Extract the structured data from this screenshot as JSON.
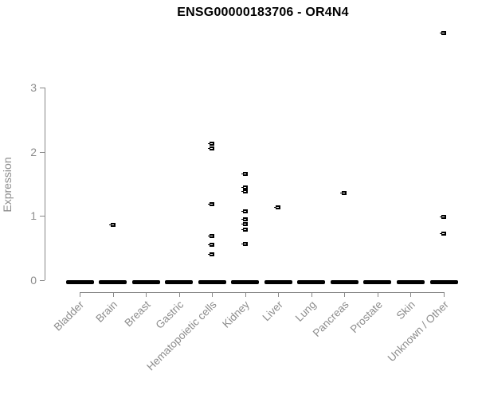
{
  "chart_data": {
    "type": "scatter",
    "title": "ENSG00000183706 - OR4N4",
    "ylabel": "Expression",
    "xlabel": "",
    "yticks": [
      0,
      1,
      2,
      3
    ],
    "ylim": [
      0,
      3
    ],
    "grid": false,
    "legend": "none",
    "marker": "small-open-square",
    "point_color": "#000000",
    "axis_color": "#888888",
    "label_color": "#8c8c8c",
    "categories": [
      "Bladder",
      "Brain",
      "Breast",
      "Gastric",
      "Hematopoietic cells",
      "Kidney",
      "Liver",
      "Lung",
      "Pancreas",
      "Prostate",
      "Skin",
      "Unknown / Other"
    ],
    "zero_bar_all_categories": true,
    "zero_bar_note": "dense cluster of points at expression 0 in every category drawn as a thick black dash",
    "points_by_category": [
      [],
      [
        0.86
      ],
      [],
      [],
      [
        2.12,
        2.05,
        1.18,
        0.69,
        0.55,
        0.4
      ],
      [
        1.65,
        1.45,
        1.38,
        1.07,
        0.95,
        0.87,
        0.79,
        0.57
      ],
      [
        1.14
      ],
      [],
      [
        1.36
      ],
      [],
      [],
      [
        3.85,
        0.99,
        0.73
      ]
    ]
  }
}
